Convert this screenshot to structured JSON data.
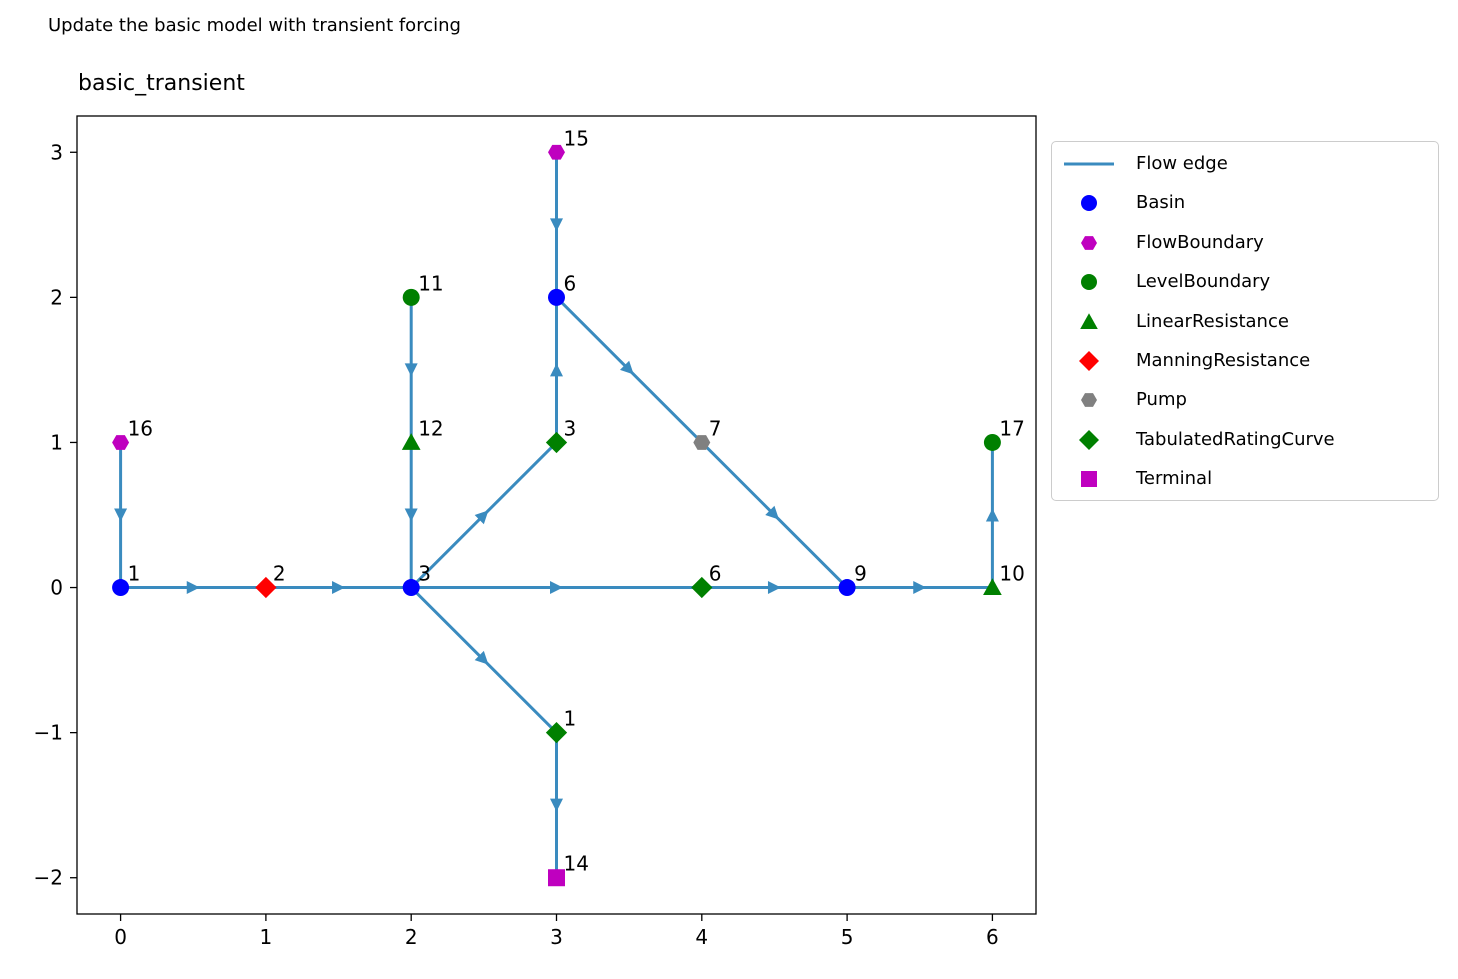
{
  "suptitle": "Update the basic model with transient forcing",
  "title": "basic_transient",
  "chart_data": {
    "type": "network",
    "xlim": [
      -0.3,
      6.3
    ],
    "ylim": [
      -2.25,
      3.25
    ],
    "xticks": [
      "0",
      "1",
      "2",
      "3",
      "4",
      "5",
      "6"
    ],
    "yticks": [
      "−2",
      "−1",
      "0",
      "1",
      "2",
      "3"
    ],
    "edge_color": "#3a8bbf",
    "nodes": [
      {
        "id": "n1",
        "type": "Basin",
        "label": "1",
        "x": 0,
        "y": 0
      },
      {
        "id": "n2",
        "type": "ManningResistance",
        "label": "2",
        "x": 1,
        "y": 0
      },
      {
        "id": "n3",
        "type": "Basin",
        "label": "3",
        "x": 2,
        "y": 0
      },
      {
        "id": "n4",
        "type": "TabulatedRatingCurve",
        "label": "3",
        "x": 3,
        "y": 1
      },
      {
        "id": "n5",
        "type": "TabulatedRatingCurve",
        "label": "1",
        "x": 3,
        "y": -1
      },
      {
        "id": "n6",
        "type": "Basin",
        "label": "6",
        "x": 3,
        "y": 2
      },
      {
        "id": "n7",
        "type": "Pump",
        "label": "7",
        "x": 4,
        "y": 1
      },
      {
        "id": "n8",
        "type": "TabulatedRatingCurve",
        "label": "6",
        "x": 4,
        "y": 0
      },
      {
        "id": "n9",
        "type": "Basin",
        "label": "9",
        "x": 5,
        "y": 0
      },
      {
        "id": "n10",
        "type": "LinearResistance",
        "label": "10",
        "x": 6,
        "y": 0
      },
      {
        "id": "n11",
        "type": "LevelBoundary",
        "label": "11",
        "x": 2,
        "y": 2
      },
      {
        "id": "n12",
        "type": "LinearResistance",
        "label": "12",
        "x": 2,
        "y": 1
      },
      {
        "id": "n14",
        "type": "Terminal",
        "label": "14",
        "x": 3,
        "y": -2
      },
      {
        "id": "n15",
        "type": "FlowBoundary",
        "label": "15",
        "x": 3,
        "y": 3
      },
      {
        "id": "n16",
        "type": "FlowBoundary",
        "label": "16",
        "x": 0,
        "y": 1
      },
      {
        "id": "n17",
        "type": "LevelBoundary",
        "label": "17",
        "x": 6,
        "y": 1
      }
    ],
    "edges": [
      {
        "from": "n1",
        "to": "n2"
      },
      {
        "from": "n2",
        "to": "n3"
      },
      {
        "from": "n3",
        "to": "n4"
      },
      {
        "from": "n4",
        "to": "n6"
      },
      {
        "from": "n6",
        "to": "n7"
      },
      {
        "from": "n7",
        "to": "n9"
      },
      {
        "from": "n3",
        "to": "n8"
      },
      {
        "from": "n8",
        "to": "n9"
      },
      {
        "from": "n3",
        "to": "n5"
      },
      {
        "from": "n5",
        "to": "n14"
      },
      {
        "from": "n9",
        "to": "n10"
      },
      {
        "from": "n10",
        "to": "n17"
      },
      {
        "from": "n11",
        "to": "n12"
      },
      {
        "from": "n12",
        "to": "n3"
      },
      {
        "from": "n15",
        "to": "n6"
      },
      {
        "from": "n16",
        "to": "n1"
      }
    ],
    "legend": {
      "placement": "outside-right",
      "items": [
        {
          "label": "Flow edge",
          "marker": "line",
          "color": "#3a8bbf"
        },
        {
          "label": "Basin",
          "marker": "circle",
          "color": "#0000ff"
        },
        {
          "label": "FlowBoundary",
          "marker": "hexagon",
          "color": "#bf00bf"
        },
        {
          "label": "LevelBoundary",
          "marker": "circle",
          "color": "#008000"
        },
        {
          "label": "LinearResistance",
          "marker": "triangle",
          "color": "#008000"
        },
        {
          "label": "ManningResistance",
          "marker": "diamond",
          "color": "#ff0000"
        },
        {
          "label": "Pump",
          "marker": "hexagon",
          "color": "#808080"
        },
        {
          "label": "TabulatedRatingCurve",
          "marker": "diamond",
          "color": "#008000"
        },
        {
          "label": "Terminal",
          "marker": "square",
          "color": "#bf00bf"
        }
      ]
    }
  }
}
